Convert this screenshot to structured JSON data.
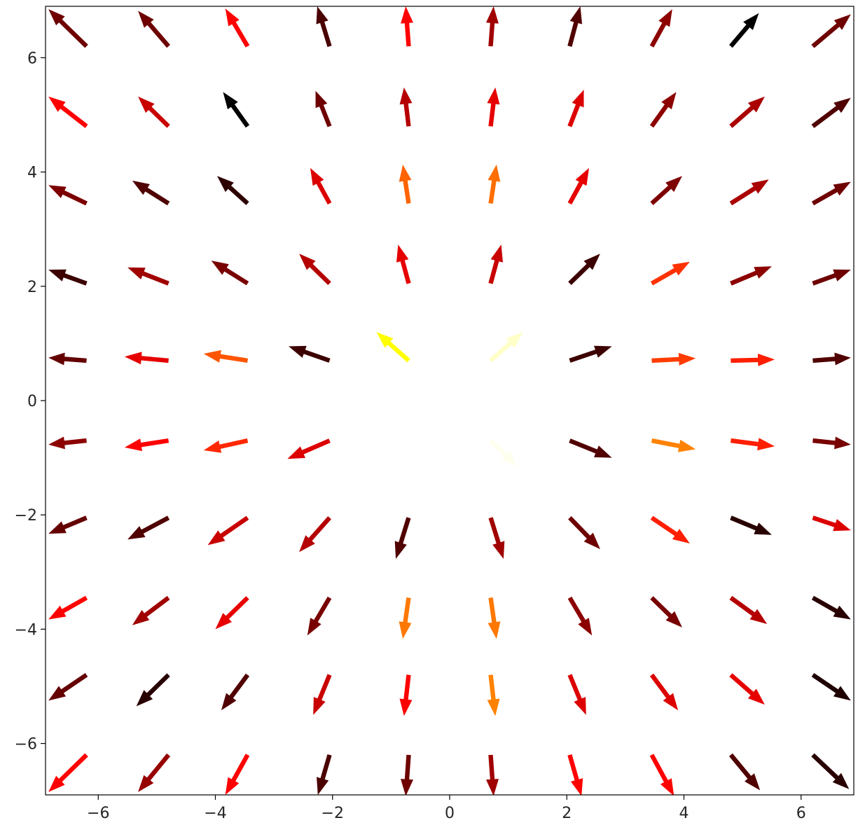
{
  "chart_data": {
    "type": "quiver",
    "title": "",
    "xlabel": "",
    "ylabel": "",
    "xlim": [
      -6.9,
      6.9
    ],
    "ylim": [
      -6.9,
      6.9
    ],
    "grid": false,
    "x_ticks": [
      -6,
      -4,
      -2,
      0,
      2,
      4,
      6
    ],
    "y_ticks": [
      -6,
      -4,
      -2,
      0,
      2,
      4,
      6
    ],
    "x_tick_labels": [
      "−6",
      "−4",
      "−2",
      "0",
      "2",
      "4",
      "6"
    ],
    "y_tick_labels": [
      "−6",
      "−4",
      "−2",
      "0",
      "2",
      "4",
      "6"
    ],
    "colormap": "hot",
    "grid_x": [
      -6.2,
      -4.8,
      -3.45,
      -2.05,
      -0.7,
      0.7,
      2.05,
      3.45,
      4.8,
      6.2
    ],
    "grid_y": [
      6.2,
      4.8,
      3.45,
      2.05,
      0.7,
      -0.7,
      -2.05,
      -3.45,
      -4.8,
      -6.2
    ],
    "arrows": [
      [
        {
          "dx": -0.65,
          "dy": 0.65,
          "color": "#6e0000"
        },
        {
          "dx": -0.52,
          "dy": 0.62,
          "color": "#6e0000"
        },
        {
          "dx": -0.38,
          "dy": 0.66,
          "color": "#ff0000"
        },
        {
          "dx": -0.21,
          "dy": 0.7,
          "color": "#4a0000"
        },
        {
          "dx": -0.05,
          "dy": 0.7,
          "color": "#ff0000"
        },
        {
          "dx": 0.05,
          "dy": 0.7,
          "color": "#a00000"
        },
        {
          "dx": 0.18,
          "dy": 0.7,
          "color": "#500000"
        },
        {
          "dx": 0.35,
          "dy": 0.65,
          "color": "#8c0000"
        },
        {
          "dx": 0.48,
          "dy": 0.58,
          "color": "#000000"
        },
        {
          "dx": 0.65,
          "dy": 0.56,
          "color": "#6e0000"
        }
      ],
      [
        {
          "dx": -0.65,
          "dy": 0.52,
          "color": "#ff0000"
        },
        {
          "dx": -0.52,
          "dy": 0.52,
          "color": "#c80000"
        },
        {
          "dx": -0.42,
          "dy": 0.6,
          "color": "#000000"
        },
        {
          "dx": -0.24,
          "dy": 0.62,
          "color": "#6e0000"
        },
        {
          "dx": -0.08,
          "dy": 0.68,
          "color": "#b40000"
        },
        {
          "dx": 0.08,
          "dy": 0.68,
          "color": "#e60000"
        },
        {
          "dx": 0.24,
          "dy": 0.64,
          "color": "#dc0000"
        },
        {
          "dx": 0.42,
          "dy": 0.6,
          "color": "#8c0000"
        },
        {
          "dx": 0.58,
          "dy": 0.52,
          "color": "#aa0000"
        },
        {
          "dx": 0.65,
          "dy": 0.5,
          "color": "#500000"
        }
      ],
      [
        {
          "dx": -0.65,
          "dy": 0.32,
          "color": "#7d0000"
        },
        {
          "dx": -0.62,
          "dy": 0.4,
          "color": "#500000"
        },
        {
          "dx": -0.52,
          "dy": 0.48,
          "color": "#2d0000"
        },
        {
          "dx": -0.33,
          "dy": 0.62,
          "color": "#dc0000"
        },
        {
          "dx": -0.1,
          "dy": 0.68,
          "color": "#ff6400"
        },
        {
          "dx": 0.1,
          "dy": 0.68,
          "color": "#ff6e00"
        },
        {
          "dx": 0.33,
          "dy": 0.62,
          "color": "#e60000"
        },
        {
          "dx": 0.52,
          "dy": 0.48,
          "color": "#7d0000"
        },
        {
          "dx": 0.65,
          "dy": 0.42,
          "color": "#aa0000"
        },
        {
          "dx": 0.65,
          "dy": 0.38,
          "color": "#6e0000"
        }
      ],
      [
        {
          "dx": -0.65,
          "dy": 0.24,
          "color": "#3c0000"
        },
        {
          "dx": -0.7,
          "dy": 0.28,
          "color": "#a00000"
        },
        {
          "dx": -0.62,
          "dy": 0.4,
          "color": "#780000"
        },
        {
          "dx": -0.52,
          "dy": 0.52,
          "color": "#b40000"
        },
        {
          "dx": -0.18,
          "dy": 0.68,
          "color": "#e60000"
        },
        {
          "dx": 0.18,
          "dy": 0.68,
          "color": "#c80000"
        },
        {
          "dx": 0.52,
          "dy": 0.52,
          "color": "#3c0000"
        },
        {
          "dx": 0.65,
          "dy": 0.38,
          "color": "#ff3200"
        },
        {
          "dx": 0.7,
          "dy": 0.3,
          "color": "#8c0000"
        },
        {
          "dx": 0.65,
          "dy": 0.24,
          "color": "#6e0000"
        }
      ],
      [
        {
          "dx": -0.65,
          "dy": 0.05,
          "color": "#640000"
        },
        {
          "dx": -0.75,
          "dy": 0.07,
          "color": "#e60000"
        },
        {
          "dx": -0.75,
          "dy": 0.12,
          "color": "#ff5500"
        },
        {
          "dx": -0.7,
          "dy": 0.25,
          "color": "#3c0000"
        },
        {
          "dx": -0.55,
          "dy": 0.5,
          "color": "#ffff00"
        },
        {
          "dx": 0.55,
          "dy": 0.5,
          "color": "#ffffc8"
        },
        {
          "dx": 0.72,
          "dy": 0.25,
          "color": "#3c0000"
        },
        {
          "dx": 0.75,
          "dy": 0.04,
          "color": "#ff3c00"
        },
        {
          "dx": 0.75,
          "dy": 0.02,
          "color": "#ff1e00"
        },
        {
          "dx": 0.65,
          "dy": 0.05,
          "color": "#500000"
        }
      ],
      [
        {
          "dx": -0.65,
          "dy": -0.07,
          "color": "#8c0000"
        },
        {
          "dx": -0.75,
          "dy": -0.12,
          "color": "#ff0000"
        },
        {
          "dx": -0.75,
          "dy": -0.17,
          "color": "#ff2800"
        },
        {
          "dx": -0.72,
          "dy": -0.32,
          "color": "#dc0000"
        },
        {
          "dx": 0.0,
          "dy": 0.0,
          "color": "#ffffff"
        },
        {
          "dx": 0.45,
          "dy": -0.45,
          "color": "#fffff0"
        },
        {
          "dx": 0.72,
          "dy": -0.3,
          "color": "#500000"
        },
        {
          "dx": 0.75,
          "dy": -0.15,
          "color": "#ff8200"
        },
        {
          "dx": 0.75,
          "dy": -0.1,
          "color": "#ff1e00"
        },
        {
          "dx": 0.65,
          "dy": -0.07,
          "color": "#780000"
        }
      ],
      [
        {
          "dx": -0.65,
          "dy": -0.28,
          "color": "#640000"
        },
        {
          "dx": -0.7,
          "dy": -0.38,
          "color": "#500000"
        },
        {
          "dx": -0.68,
          "dy": -0.48,
          "color": "#c80000"
        },
        {
          "dx": -0.52,
          "dy": -0.6,
          "color": "#b40000"
        },
        {
          "dx": -0.22,
          "dy": -0.72,
          "color": "#500000"
        },
        {
          "dx": 0.22,
          "dy": -0.72,
          "color": "#a00000"
        },
        {
          "dx": 0.52,
          "dy": -0.55,
          "color": "#6e0000"
        },
        {
          "dx": 0.65,
          "dy": -0.45,
          "color": "#ff1e00"
        },
        {
          "dx": 0.7,
          "dy": -0.3,
          "color": "#280000"
        },
        {
          "dx": 0.65,
          "dy": -0.22,
          "color": "#dc0000"
        }
      ],
      [
        {
          "dx": -0.65,
          "dy": -0.38,
          "color": "#ff0000"
        },
        {
          "dx": -0.62,
          "dy": -0.48,
          "color": "#a00000"
        },
        {
          "dx": -0.55,
          "dy": -0.55,
          "color": "#e60000"
        },
        {
          "dx": -0.38,
          "dy": -0.66,
          "color": "#780000"
        },
        {
          "dx": -0.1,
          "dy": -0.72,
          "color": "#ff7800"
        },
        {
          "dx": 0.1,
          "dy": -0.72,
          "color": "#ff7800"
        },
        {
          "dx": 0.38,
          "dy": -0.66,
          "color": "#8c0000"
        },
        {
          "dx": 0.52,
          "dy": -0.52,
          "color": "#780000"
        },
        {
          "dx": 0.62,
          "dy": -0.46,
          "color": "#b40000"
        },
        {
          "dx": 0.65,
          "dy": -0.38,
          "color": "#280000"
        }
      ],
      [
        {
          "dx": -0.65,
          "dy": -0.45,
          "color": "#640000"
        },
        {
          "dx": -0.55,
          "dy": -0.55,
          "color": "#280000"
        },
        {
          "dx": -0.45,
          "dy": -0.62,
          "color": "#500000"
        },
        {
          "dx": -0.28,
          "dy": -0.7,
          "color": "#c80000"
        },
        {
          "dx": -0.08,
          "dy": -0.72,
          "color": "#ff0000"
        },
        {
          "dx": 0.08,
          "dy": -0.72,
          "color": "#ff8200"
        },
        {
          "dx": 0.28,
          "dy": -0.7,
          "color": "#dc0000"
        },
        {
          "dx": 0.45,
          "dy": -0.62,
          "color": "#dc0000"
        },
        {
          "dx": 0.58,
          "dy": -0.52,
          "color": "#e60000"
        },
        {
          "dx": 0.65,
          "dy": -0.45,
          "color": "#1e0000"
        }
      ],
      [
        {
          "dx": -0.65,
          "dy": -0.65,
          "color": "#ff0000"
        },
        {
          "dx": -0.52,
          "dy": -0.65,
          "color": "#960000"
        },
        {
          "dx": -0.38,
          "dy": -0.7,
          "color": "#ff0000"
        },
        {
          "dx": -0.2,
          "dy": -0.7,
          "color": "#4b0000"
        },
        {
          "dx": -0.05,
          "dy": -0.72,
          "color": "#6e0000"
        },
        {
          "dx": 0.05,
          "dy": -0.72,
          "color": "#a00000"
        },
        {
          "dx": 0.2,
          "dy": -0.72,
          "color": "#ff0000"
        },
        {
          "dx": 0.38,
          "dy": -0.72,
          "color": "#ff0000"
        },
        {
          "dx": 0.5,
          "dy": -0.62,
          "color": "#500000"
        },
        {
          "dx": 0.62,
          "dy": -0.6,
          "color": "#280000"
        }
      ]
    ]
  }
}
